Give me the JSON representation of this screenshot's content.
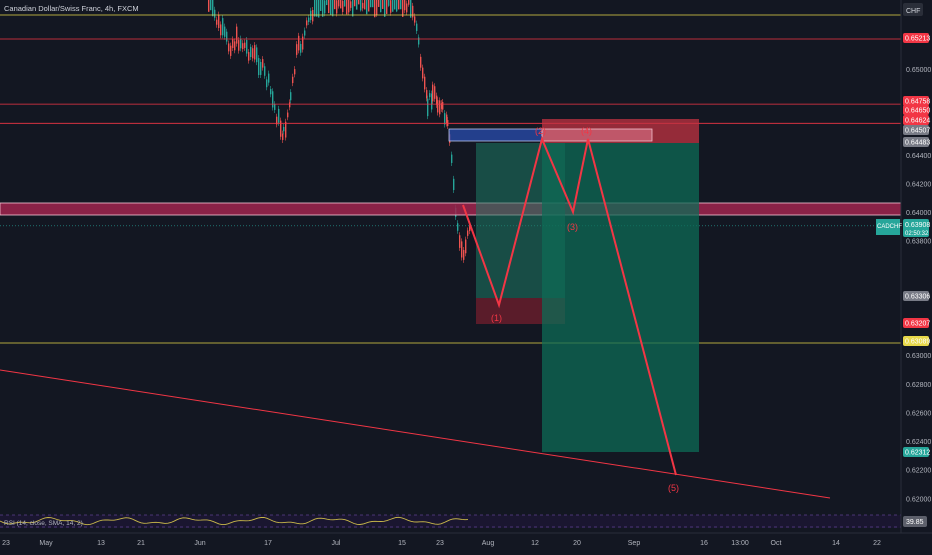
{
  "header": {
    "symbol_title": "Canadian Dollar/Swiss Franc, 4h, FXCM",
    "currency_label": "CHF"
  },
  "colors": {
    "background": "#131722",
    "bull": "#26a69a",
    "bear": "#ef5350",
    "wave": "#f23645",
    "rsi": "#c9b84a",
    "level_yellow": "#e8d94a",
    "resistance_band": "#a0244e"
  },
  "chart_data": {
    "type": "candlestick",
    "title": "Canadian Dollar/Swiss Franc, 4h, FXCM",
    "y_ticks": [
      0.65,
      0.644,
      0.642,
      0.64,
      0.638,
      0.63,
      0.628,
      0.626,
      0.624,
      0.622,
      0.62
    ],
    "y_tick_labels": [
      "0.65000",
      "0.64400",
      "0.64200",
      "0.64000",
      "0.63800",
      "0.63000",
      "0.62800",
      "0.62600",
      "0.62400",
      "0.62200",
      "0.62000"
    ],
    "x_tick_labels": [
      "23",
      "May",
      "13",
      "21",
      "Jun",
      "17",
      "Jul",
      "15",
      "23",
      "Aug",
      "12",
      "20",
      "Sep",
      "16",
      "13:00",
      "Oct",
      "14",
      "22"
    ],
    "price_badges": [
      {
        "label": "0.65213",
        "value": 0.65213,
        "color": "#f23645"
      },
      {
        "label": "0.64758",
        "value": 0.64758,
        "color": "#f23645"
      },
      {
        "label": "0.64650",
        "value": 0.6465,
        "color": "#f23645"
      },
      {
        "label": "0.64624",
        "value": 0.64624,
        "color": "#f23645"
      },
      {
        "label": "0.64507",
        "value": 0.64507,
        "color": "#787b86"
      },
      {
        "label": "0.64483",
        "value": 0.64483,
        "color": "#787b86"
      },
      {
        "label": "0.63908",
        "value": 0.63908,
        "color": "#26a69a"
      },
      {
        "label": "0.63306",
        "value": 0.63306,
        "color": "#787b86"
      },
      {
        "label": "0.63207",
        "value": 0.63207,
        "color": "#f23645"
      },
      {
        "label": "0.63089",
        "value": 0.63089,
        "color": "#e8d94a"
      },
      {
        "label": "0.62312",
        "value": 0.62312,
        "color": "#26a69a"
      }
    ],
    "symbol_badge": {
      "label": "CADCHF",
      "countdown": "02:50:32"
    },
    "horizontal_levels": [
      {
        "value": 0.6558,
        "color": "#e8d94a"
      },
      {
        "value": 0.65213,
        "color": "#f23645"
      },
      {
        "value": 0.64758,
        "color": "#f23645"
      },
      {
        "value": 0.64624,
        "color": "#f23645"
      },
      {
        "value": 0.63089,
        "color": "#e8d94a"
      }
    ],
    "resistance_band": {
      "low": 0.6398,
      "high": 0.6403
    },
    "wave_labels": [
      "(1)",
      "(2)",
      "(3)",
      "(4)",
      "(5)"
    ],
    "rsi": {
      "label": "RSI (14, close, SMA, 14, 2)",
      "value": "39.85"
    }
  }
}
